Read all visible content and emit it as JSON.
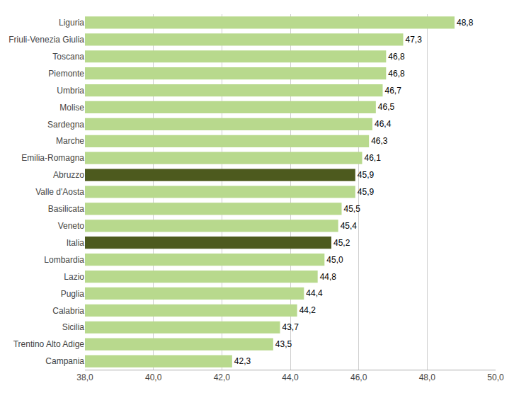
{
  "chart_data": {
    "type": "bar",
    "orientation": "horizontal",
    "categories": [
      "Campania",
      "Trentino Alto Adige",
      "Sicilia",
      "Calabria",
      "Puglia",
      "Lazio",
      "Lombardia",
      "Italia",
      "Veneto",
      "Basilicata",
      "Valle d'Aosta",
      "Abruzzo",
      "Emilia-Romagna",
      "Marche",
      "Sardegna",
      "Molise",
      "Umbria",
      "Piemonte",
      "Toscana",
      "Friuli-Venezia Giulia",
      "Liguria"
    ],
    "values": [
      42.3,
      43.5,
      43.7,
      44.2,
      44.4,
      44.8,
      45.0,
      45.2,
      45.4,
      45.5,
      45.9,
      45.9,
      46.1,
      46.3,
      46.4,
      46.5,
      46.7,
      46.8,
      46.8,
      47.3,
      48.8
    ],
    "value_labels": [
      "42,3",
      "43,5",
      "43,7",
      "44,2",
      "44,4",
      "44,8",
      "45,0",
      "45,2",
      "45,4",
      "45,5",
      "45,9",
      "45,9",
      "46,1",
      "46,3",
      "46,4",
      "46,5",
      "46,7",
      "46,8",
      "46,8",
      "47,3",
      "48,8"
    ],
    "colors": [
      "#b8d98d",
      "#b8d98d",
      "#b8d98d",
      "#b8d98d",
      "#b8d98d",
      "#b8d98d",
      "#b8d98d",
      "#4d5a1e",
      "#b8d98d",
      "#b8d98d",
      "#b8d98d",
      "#4d5a1e",
      "#b8d98d",
      "#b8d98d",
      "#b8d98d",
      "#b8d98d",
      "#b8d98d",
      "#b8d98d",
      "#b8d98d",
      "#b8d98d",
      "#b8d98d"
    ],
    "xlim": [
      38.0,
      50.0
    ],
    "xticks": [
      {
        "value": 38.0,
        "label": "38,0"
      },
      {
        "value": 40.0,
        "label": "40,0"
      },
      {
        "value": 42.0,
        "label": "42,0"
      },
      {
        "value": 44.0,
        "label": "44,0"
      },
      {
        "value": 46.0,
        "label": "46,0"
      },
      {
        "value": 48.0,
        "label": "48,0"
      },
      {
        "value": 50.0,
        "label": "50,0"
      }
    ],
    "grid": true,
    "data_labels": true
  }
}
